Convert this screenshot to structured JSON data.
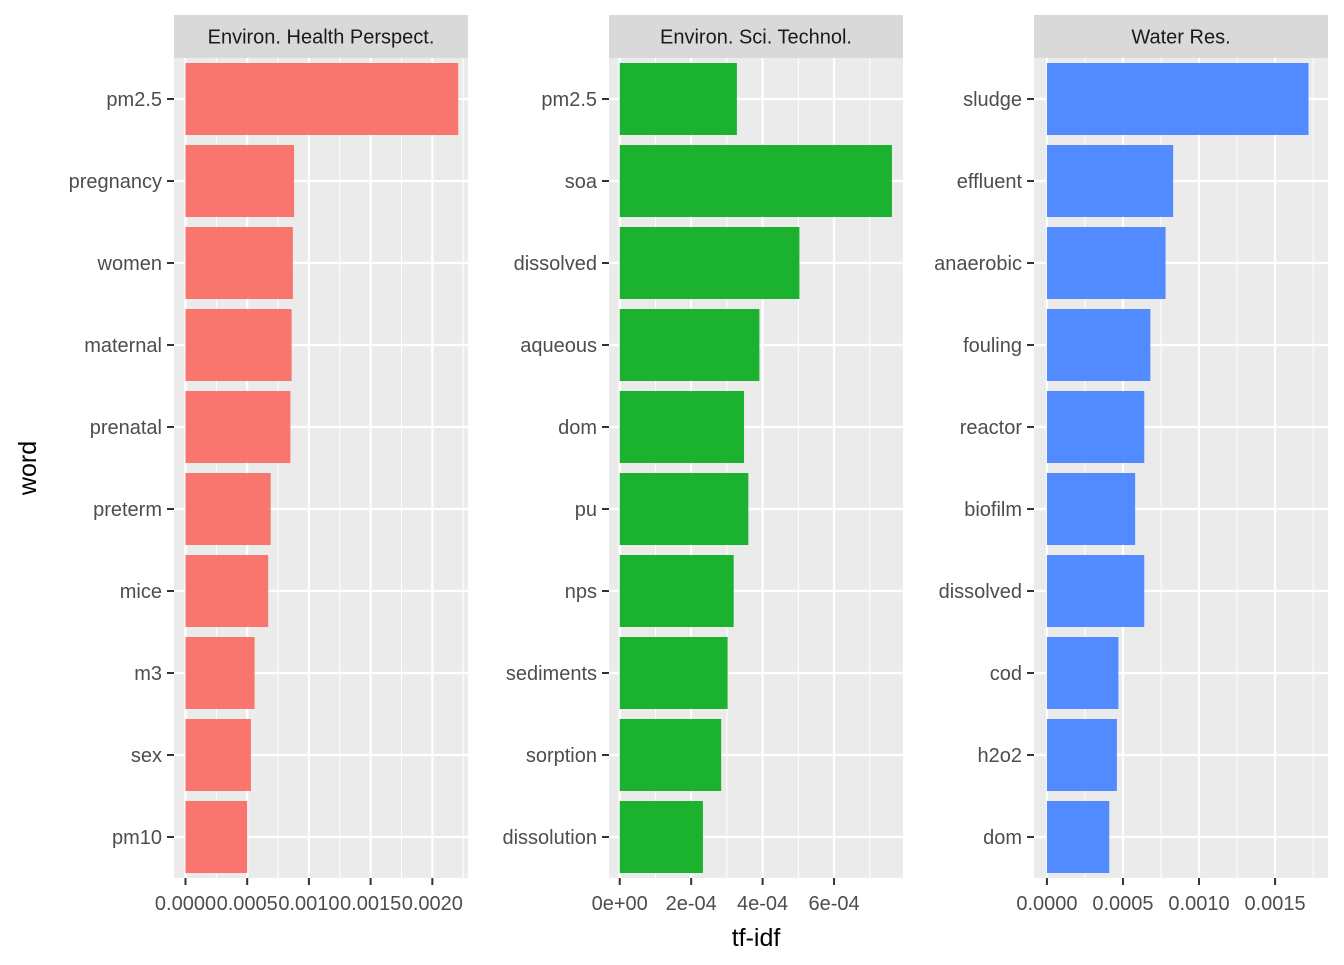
{
  "chart_data": {
    "type": "bar",
    "orientation": "horizontal",
    "xlabel": "tf-idf",
    "ylabel": "word",
    "grid": true,
    "legend": "none",
    "facets": [
      {
        "title": "Environ. Health Perspect.",
        "color": "#F8766D",
        "categories": [
          "pm2.5",
          "pregnancy",
          "women",
          "maternal",
          "prenatal",
          "preterm",
          "mice",
          "m3",
          "sex",
          "pm10"
        ],
        "values": [
          0.00221,
          0.00088,
          0.00087,
          0.00086,
          0.00085,
          0.00069,
          0.00067,
          0.00056,
          0.00053,
          0.0005
        ],
        "xlim": [
          -9.3e-05,
          0.002289
        ],
        "ticks": [
          0,
          0.0005,
          0.001,
          0.0015,
          0.002
        ],
        "tick_labels": [
          "0.0000",
          "0.0005",
          "0.0010",
          "0.0015",
          "0.0020"
        ]
      },
      {
        "title": "Environ. Sci. Technol.",
        "color": "#1AB22F",
        "categories": [
          "pm2.5",
          "soa",
          "dissolved",
          "aqueous",
          "dom",
          "pu",
          "nps",
          "sediments",
          "sorption",
          "dissolution"
        ],
        "values": [
          0.000328,
          0.000762,
          0.000503,
          0.000391,
          0.000348,
          0.00036,
          0.000319,
          0.000302,
          0.000284,
          0.000233
        ],
        "xlim": [
          -3e-05,
          0.000793
        ],
        "ticks": [
          0,
          0.0002,
          0.0004,
          0.0006
        ],
        "tick_labels": [
          "0e+00",
          "2e-04",
          "4e-04",
          "6e-04"
        ]
      },
      {
        "title": "Water Res.",
        "color": "#528BFF",
        "categories": [
          "sludge",
          "effluent",
          "anaerobic",
          "fouling",
          "reactor",
          "biofilm",
          "dissolved",
          "cod",
          "h2o2",
          "dom"
        ],
        "values": [
          0.00172,
          0.00083,
          0.00078,
          0.00068,
          0.00064,
          0.00058,
          0.00064,
          0.00047,
          0.00046,
          0.00041
        ],
        "xlim": [
          -8.5e-05,
          0.001848
        ],
        "ticks": [
          0,
          0.0005,
          0.001,
          0.0015
        ],
        "tick_labels": [
          "0.0000",
          "0.0005",
          "0.0010",
          "0.0015"
        ]
      }
    ]
  }
}
